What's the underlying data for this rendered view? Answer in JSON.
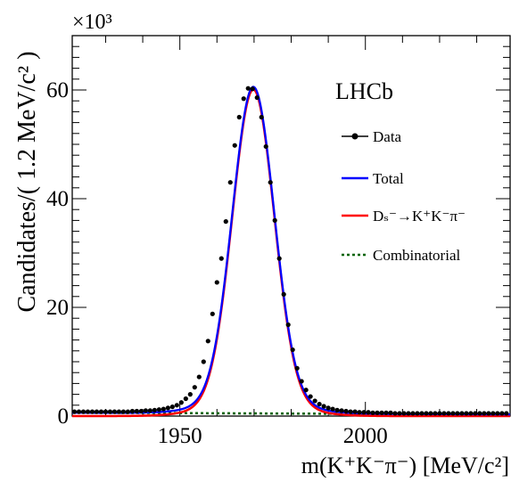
{
  "chart_data": {
    "type": "line",
    "xlabel": "m(K⁺K⁻π⁻) [MeV/c²]",
    "ylabel": "Candidates/( 1.2 MeV/c² )",
    "scale_label": "×10³",
    "experiment_label": "LHCb",
    "xlim": [
      1921,
      2039
    ],
    "ylim": [
      0,
      70
    ],
    "x_ticks": [
      1950,
      2000
    ],
    "y_ticks": [
      0,
      20,
      40,
      60
    ],
    "grid": false,
    "legend_position": "top-right",
    "legend": [
      {
        "key": "data",
        "label": "Data"
      },
      {
        "key": "total",
        "label": "Total"
      },
      {
        "key": "signal",
        "label": "Dₛ⁻→K⁺K⁻π⁻"
      },
      {
        "key": "combinatorial",
        "label": "Combinatorial"
      }
    ],
    "data_points": {
      "x": [
        1921.6,
        1922.8,
        1924,
        1925.2,
        1926.4,
        1927.6,
        1928.8,
        1930,
        1931.2,
        1932.4,
        1933.6,
        1934.8,
        1936,
        1937.2,
        1938.4,
        1939.6,
        1940.8,
        1942,
        1943.2,
        1944.4,
        1945.6,
        1946.8,
        1948,
        1949.2,
        1950.4,
        1951.6,
        1952.8,
        1954,
        1955.2,
        1956.4,
        1957.6,
        1958.8,
        1960,
        1961.2,
        1962.4,
        1963.6,
        1964.8,
        1966,
        1967.2,
        1968.4,
        1969.6,
        1970.8,
        1972,
        1973.2,
        1974.4,
        1975.6,
        1976.8,
        1978,
        1979.2,
        1980.4,
        1981.6,
        1982.8,
        1984,
        1985.2,
        1986.4,
        1987.6,
        1988.8,
        1990,
        1991.2,
        1992.4,
        1993.6,
        1994.8,
        1996,
        1997.2,
        1998.4,
        1999.6,
        2000.8,
        2002,
        2003.2,
        2004.4,
        2005.6,
        2006.8,
        2008,
        2009.2,
        2010.4,
        2011.6,
        2012.8,
        2014,
        2015.2,
        2016.4,
        2017.6,
        2018.8,
        2020,
        2021.2,
        2022.4,
        2023.6,
        2024.8,
        2026,
        2027.2,
        2028.4,
        2029.6,
        2030.8,
        2032,
        2033.2,
        2034.4,
        2035.6,
        2036.8,
        2038
      ],
      "y": [
        0.8,
        0.8,
        0.8,
        0.8,
        0.8,
        0.8,
        0.8,
        0.8,
        0.8,
        0.8,
        0.8,
        0.8,
        0.8,
        0.9,
        0.9,
        0.9,
        1.0,
        1.0,
        1.1,
        1.2,
        1.3,
        1.5,
        1.7,
        2.0,
        2.5,
        3.2,
        4.0,
        5.3,
        7.2,
        10.0,
        13.8,
        18.8,
        24.6,
        29.0,
        35.8,
        43.0,
        49.8,
        55.0,
        58.4,
        60.3,
        60.2,
        58.6,
        55.0,
        49.6,
        43.0,
        36.0,
        29.0,
        22.4,
        16.8,
        12.2,
        8.8,
        6.4,
        4.8,
        3.6,
        2.8,
        2.2,
        1.8,
        1.5,
        1.3,
        1.1,
        1.0,
        0.9,
        0.8,
        0.8,
        0.7,
        0.7,
        0.7,
        0.6,
        0.6,
        0.6,
        0.6,
        0.6,
        0.5,
        0.5,
        0.5,
        0.5,
        0.5,
        0.5,
        0.5,
        0.5,
        0.5,
        0.5,
        0.5,
        0.5,
        0.5,
        0.5,
        0.5,
        0.5,
        0.5,
        0.5,
        0.5,
        0.5,
        0.5,
        0.5,
        0.5,
        0.5,
        0.5,
        0.5
      ]
    },
    "fit_model": {
      "mean": 1969.8,
      "sigma": 5.6,
      "peak": 60.1,
      "tail_amplitude": 0.045,
      "tail_width": 11.0,
      "combinatorial_start": 0.62,
      "combinatorial_end": 0.3
    },
    "colors": {
      "data": "#000000",
      "total": "#0000ff",
      "signal": "#ff0000",
      "combinatorial": "#006400"
    }
  }
}
